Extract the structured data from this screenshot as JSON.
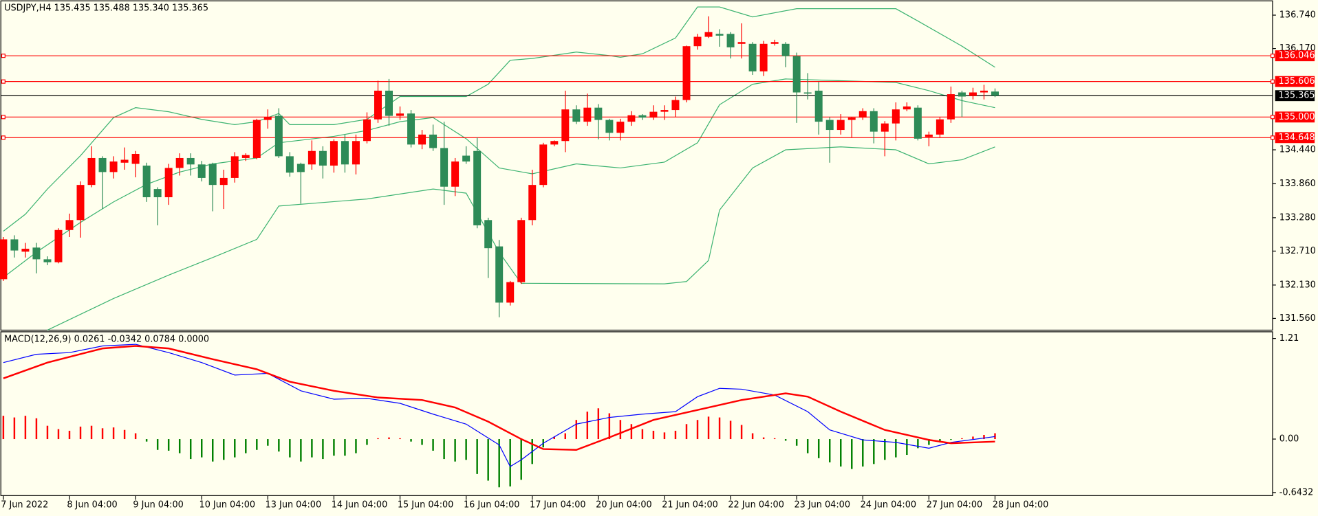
{
  "chart_data": [
    {
      "type": "candlestick",
      "title": "USDJPY,H4  135.435 135.488 135.340 135.365",
      "up_color": "#ff0000",
      "down_color": "#2e8b57",
      "categories": [
        "7 Jun 2022",
        null,
        null,
        null,
        null,
        null,
        "8 Jun 04:00",
        null,
        null,
        null,
        null,
        null,
        "9 Jun 04:00",
        null,
        null,
        null,
        null,
        null,
        "10 Jun 04:00",
        null,
        null,
        null,
        null,
        null,
        "13 Jun 04:00",
        null,
        null,
        null,
        null,
        null,
        "14 Jun 04:00",
        null,
        null,
        null,
        null,
        null,
        "15 Jun 04:00",
        null,
        null,
        null,
        null,
        null,
        "16 Jun 04:00",
        null,
        null,
        null,
        null,
        null,
        "17 Jun 04:00",
        null,
        null,
        null,
        null,
        null,
        "20 Jun 04:00",
        null,
        null,
        null,
        null,
        null,
        "21 Jun 04:00",
        null,
        null,
        null,
        null,
        null,
        "22 Jun 04:00",
        null,
        null,
        null,
        null,
        null,
        "23 Jun 04:00",
        null,
        null,
        null,
        null,
        null,
        "24 Jun 04:00",
        null,
        null,
        null,
        null,
        null,
        "27 Jun 04:00",
        null,
        null,
        null,
        null,
        null,
        "28 Jun 04:00"
      ],
      "open": [
        132.23,
        132.91,
        132.7,
        132.77,
        132.57,
        132.52,
        133.07,
        133.24,
        133.84,
        134.3,
        134.06,
        134.22,
        134.2,
        134.17,
        133.77,
        133.63,
        134.13,
        134.3,
        134.19,
        134.2,
        133.84,
        133.96,
        134.3,
        134.3,
        134.95,
        135.02,
        134.33,
        134.2,
        134.19,
        134.42,
        134.17,
        134.59,
        134.19,
        134.59,
        134.96,
        135.45,
        135.02,
        135.06,
        134.53,
        134.7,
        134.47,
        133.81,
        134.34,
        134.42,
        133.24,
        132.79,
        131.83,
        132.18,
        133.24,
        133.84,
        134.53,
        134.59,
        135.13,
        134.92,
        135.16,
        134.95,
        134.73,
        134.92,
        135.03,
        134.99,
        135.09,
        135.12,
        135.29,
        136.21,
        136.37,
        136.42,
        136.42,
        136.25,
        136.25,
        135.78,
        136.25,
        136.25,
        136.04,
        135.42,
        135.45,
        134.95,
        134.78,
        134.95,
        134.99,
        135.1,
        134.75,
        134.89,
        135.13,
        135.16,
        134.66,
        134.7,
        134.96,
        135.42,
        135.36,
        135.42,
        135.435
      ],
      "high": [
        132.95,
        132.98,
        132.85,
        132.85,
        132.62,
        133.1,
        133.35,
        133.9,
        134.5,
        134.33,
        134.33,
        134.48,
        134.42,
        134.22,
        133.8,
        134.2,
        134.38,
        134.38,
        134.25,
        134.22,
        134.1,
        134.4,
        134.38,
        134.97,
        135.13,
        135.15,
        134.4,
        134.22,
        134.6,
        134.5,
        134.62,
        134.7,
        134.7,
        135.08,
        135.62,
        135.65,
        135.18,
        135.12,
        134.78,
        134.87,
        134.92,
        134.3,
        134.5,
        134.65,
        133.28,
        132.9,
        132.2,
        133.28,
        134.1,
        134.56,
        134.6,
        135.45,
        135.2,
        135.4,
        135.22,
        134.97,
        134.97,
        135.1,
        135.05,
        135.2,
        135.2,
        135.35,
        136.22,
        136.42,
        136.72,
        136.5,
        136.45,
        136.6,
        136.28,
        136.3,
        136.32,
        136.28,
        136.1,
        135.75,
        135.6,
        135.0,
        135.05,
        135.0,
        135.15,
        135.15,
        134.93,
        135.25,
        135.25,
        135.2,
        134.75,
        135.0,
        135.52,
        135.45,
        135.5,
        135.55,
        135.488
      ],
      "low": [
        132.2,
        132.6,
        132.6,
        132.33,
        132.47,
        132.5,
        132.95,
        132.94,
        133.8,
        133.43,
        133.95,
        134.1,
        133.97,
        133.55,
        133.15,
        133.5,
        134.0,
        134.0,
        133.9,
        133.39,
        133.43,
        133.88,
        134.25,
        134.28,
        134.8,
        134.3,
        133.98,
        133.52,
        134.1,
        133.95,
        134.05,
        134.05,
        134.02,
        134.55,
        134.9,
        134.85,
        134.95,
        134.48,
        134.45,
        134.42,
        133.5,
        133.65,
        134.2,
        133.1,
        132.25,
        131.58,
        131.78,
        132.15,
        133.15,
        133.8,
        134.5,
        134.4,
        134.88,
        134.85,
        134.62,
        134.6,
        134.6,
        134.85,
        134.95,
        134.95,
        134.95,
        135.0,
        135.25,
        136.15,
        136.35,
        136.2,
        136.0,
        136.0,
        135.72,
        135.7,
        136.22,
        135.85,
        134.9,
        135.3,
        134.7,
        134.22,
        134.7,
        134.65,
        134.95,
        134.55,
        134.33,
        134.6,
        135.1,
        134.6,
        134.5,
        134.65,
        134.9,
        135.0,
        135.3,
        135.3,
        135.34
      ],
      "close": [
        132.91,
        132.72,
        132.75,
        132.57,
        132.52,
        133.07,
        133.24,
        133.84,
        134.3,
        134.06,
        134.24,
        134.27,
        134.37,
        133.63,
        133.63,
        134.13,
        134.3,
        134.19,
        133.96,
        133.84,
        133.96,
        134.33,
        134.35,
        134.95,
        135.0,
        134.33,
        134.05,
        134.06,
        134.42,
        134.17,
        134.59,
        134.19,
        134.59,
        134.96,
        135.45,
        135.02,
        135.06,
        134.53,
        134.7,
        134.47,
        133.81,
        134.24,
        134.24,
        133.15,
        132.76,
        131.83,
        132.18,
        133.24,
        133.84,
        134.53,
        134.59,
        135.13,
        134.92,
        135.16,
        134.95,
        134.73,
        134.92,
        135.03,
        134.99,
        135.09,
        135.12,
        135.29,
        136.21,
        136.37,
        136.45,
        136.39,
        136.19,
        136.28,
        135.78,
        136.25,
        136.28,
        136.04,
        135.42,
        135.4,
        134.92,
        134.78,
        134.95,
        134.99,
        135.1,
        134.75,
        134.89,
        135.13,
        135.18,
        134.63,
        134.7,
        134.96,
        135.39,
        135.35,
        135.42,
        135.45,
        135.365
      ],
      "series": [
        {
          "color": "#3cb371",
          "x": [
            0,
            2,
            4,
            7,
            10,
            12,
            15,
            18,
            21,
            23,
            25,
            26,
            30,
            33,
            36,
            39,
            42,
            44,
            46,
            48,
            52,
            55,
            56,
            58,
            61,
            63,
            65,
            68,
            72,
            81,
            83,
            87,
            90
          ],
          "values": [
            133.05,
            133.34,
            133.77,
            134.34,
            134.99,
            135.16,
            135.09,
            134.96,
            134.87,
            134.92,
            135.06,
            134.87,
            134.87,
            134.96,
            135.35,
            135.35,
            135.35,
            135.56,
            135.97,
            136.0,
            136.11,
            136.05,
            136.02,
            136.08,
            136.35,
            136.88,
            136.88,
            136.71,
            136.85,
            136.85,
            136.64,
            136.21,
            135.85
          ]
        },
        {
          "color": "#3cb371",
          "x": [
            0,
            3,
            7,
            10,
            13,
            16,
            19,
            23,
            25,
            30,
            33,
            36,
            39,
            42,
            45,
            48,
            52,
            56,
            60,
            63,
            65,
            68,
            71,
            76,
            81,
            84,
            87,
            90
          ],
          "values": [
            132.26,
            132.69,
            133.2,
            133.55,
            133.85,
            134.06,
            134.2,
            134.3,
            134.56,
            134.67,
            134.77,
            134.92,
            134.99,
            134.63,
            134.13,
            134.03,
            134.2,
            134.13,
            134.23,
            134.56,
            135.21,
            135.56,
            135.65,
            135.62,
            135.59,
            135.45,
            135.28,
            135.16
          ]
        },
        {
          "color": "#3cb371",
          "x": [
            4,
            10,
            15,
            19,
            23,
            25,
            33,
            39,
            42,
            45,
            47,
            60,
            62,
            64,
            65,
            68,
            71,
            76,
            81,
            84,
            87,
            90
          ],
          "values": [
            131.36,
            131.9,
            132.3,
            132.6,
            132.91,
            133.48,
            133.6,
            133.77,
            133.7,
            132.69,
            132.16,
            132.15,
            132.19,
            132.55,
            133.41,
            134.13,
            134.44,
            134.49,
            134.44,
            134.2,
            134.27,
            134.49
          ]
        }
      ],
      "levels": [
        {
          "value": 136.046,
          "color": "#ff0000"
        },
        {
          "value": 135.606,
          "color": "#ff0000"
        },
        {
          "value": 135.365,
          "color": "#000000"
        },
        {
          "value": 135,
          "label": "135.000",
          "color": "#ff0000"
        },
        {
          "value": 134.648,
          "color": "#ff0000"
        }
      ],
      "ylim": [
        131.36,
        136.97
      ],
      "yticks": [
        {
          "value": 136.74,
          "label": "136.740"
        },
        {
          "value": 136.17,
          "label": "136.170"
        },
        {
          "value": 134.44,
          "label": "134.440"
        },
        {
          "value": 133.86,
          "label": "133.860"
        },
        {
          "value": 133.28,
          "label": "133.280"
        },
        {
          "value": 132.71,
          "label": "132.710"
        },
        {
          "value": 132.13,
          "label": "132.130"
        },
        {
          "value": 131.56,
          "label": "131.560"
        }
      ]
    },
    {
      "type": "macd",
      "title": "MACD(12,26,9) 0.0261 -0.0342 0.0784 0.0000",
      "series": [
        {
          "kind": "histogram",
          "color": "#ff0000",
          "neg_color": "#008000",
          "values": [
            0.28,
            0.26,
            0.28,
            0.25,
            0.16,
            0.12,
            0.1,
            0.15,
            0.16,
            0.13,
            0.14,
            0.11,
            0.07,
            -0.03,
            -0.13,
            -0.14,
            -0.17,
            -0.24,
            -0.22,
            -0.27,
            -0.25,
            -0.22,
            -0.17,
            -0.13,
            -0.08,
            -0.15,
            -0.22,
            -0.27,
            -0.22,
            -0.24,
            -0.2,
            -0.2,
            -0.17,
            -0.07,
            0.01,
            0.02,
            0.01,
            -0.03,
            -0.07,
            -0.14,
            -0.24,
            -0.27,
            -0.25,
            -0.42,
            -0.5,
            -0.58,
            -0.57,
            -0.49,
            -0.3,
            -0.1,
            0.03,
            0.07,
            0.23,
            0.33,
            0.37,
            0.31,
            0.23,
            0.18,
            0.12,
            0.1,
            0.08,
            0.1,
            0.18,
            0.23,
            0.27,
            0.26,
            0.22,
            0.17,
            0.07,
            0.02,
            0.01,
            -0.02,
            -0.08,
            -0.17,
            -0.23,
            -0.28,
            -0.33,
            -0.36,
            -0.33,
            -0.3,
            -0.25,
            -0.22,
            -0.19,
            -0.11,
            -0.07,
            -0.04,
            -0.01,
            0.01,
            0.03,
            0.05,
            0.07
          ]
        },
        {
          "kind": "line",
          "color": "#0000ff",
          "width": 1,
          "x": [
            0,
            3,
            6,
            9,
            12,
            15,
            18,
            21,
            24,
            27,
            30,
            33,
            36,
            39,
            42,
            45,
            46,
            47,
            49,
            52,
            55,
            58,
            61,
            63,
            65,
            67,
            70,
            73,
            75,
            78,
            81,
            84,
            86,
            90
          ],
          "values": [
            0.92,
            1.02,
            1.04,
            1.12,
            1.14,
            1.04,
            0.92,
            0.77,
            0.79,
            0.58,
            0.48,
            0.49,
            0.43,
            0.3,
            0.18,
            -0.07,
            -0.33,
            -0.25,
            -0.05,
            0.18,
            0.26,
            0.3,
            0.33,
            0.51,
            0.61,
            0.6,
            0.53,
            0.33,
            0.11,
            -0.01,
            -0.04,
            -0.11,
            -0.04,
            0.03
          ]
        },
        {
          "kind": "line",
          "color": "#ff0000",
          "width": 2,
          "x": [
            0,
            4,
            9,
            12,
            15,
            19,
            23,
            26,
            30,
            34,
            38,
            41,
            44,
            47,
            49,
            52,
            55,
            59,
            63,
            67,
            71,
            73,
            76,
            80,
            84,
            86,
            90
          ],
          "values": [
            0.73,
            0.92,
            1.09,
            1.12,
            1.09,
            0.96,
            0.84,
            0.69,
            0.58,
            0.5,
            0.47,
            0.38,
            0.21,
            0.0,
            -0.12,
            -0.13,
            0.02,
            0.23,
            0.35,
            0.47,
            0.55,
            0.51,
            0.33,
            0.11,
            -0.01,
            -0.05,
            -0.03
          ]
        }
      ],
      "ylim": [
        -0.68,
        1.28
      ],
      "yticks": [
        1.21,
        {
          "value": 0,
          "label": "0.00"
        },
        -0.6432
      ]
    }
  ]
}
